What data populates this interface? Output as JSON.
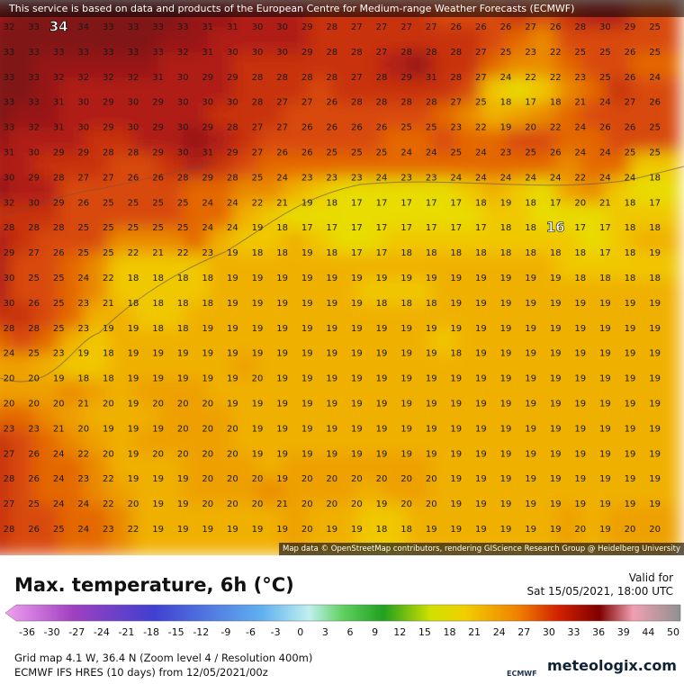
{
  "header": {
    "disclaimer": "This service is based on data and products of the European Centre for Medium-range Weather Forecasts (ECMWF)"
  },
  "map": {
    "attribution": "Map data © OpenStreetMap contributors, rendering GIScience Research Group @ Heidelberg University",
    "grid": [
      [
        32,
        33,
        34,
        34,
        33,
        33,
        33,
        33,
        31,
        31,
        30,
        30,
        29,
        28,
        27,
        27,
        27,
        27,
        26,
        26,
        26,
        27,
        26,
        28,
        30,
        29,
        25
      ],
      [
        33,
        33,
        33,
        33,
        33,
        33,
        33,
        32,
        31,
        30,
        30,
        30,
        29,
        28,
        28,
        27,
        28,
        28,
        28,
        27,
        25,
        23,
        22,
        25,
        25,
        26,
        25
      ],
      [
        33,
        33,
        32,
        32,
        32,
        32,
        31,
        30,
        29,
        29,
        28,
        28,
        28,
        28,
        27,
        28,
        29,
        31,
        28,
        27,
        24,
        22,
        22,
        23,
        25,
        26,
        24
      ],
      [
        33,
        33,
        31,
        30,
        29,
        30,
        29,
        30,
        30,
        30,
        28,
        27,
        27,
        26,
        28,
        28,
        28,
        28,
        27,
        25,
        18,
        17,
        18,
        21,
        24,
        27,
        26
      ],
      [
        33,
        32,
        31,
        30,
        29,
        30,
        29,
        30,
        29,
        28,
        27,
        27,
        26,
        26,
        26,
        26,
        25,
        25,
        23,
        22,
        19,
        20,
        22,
        24,
        26,
        26,
        25
      ],
      [
        31,
        30,
        29,
        29,
        28,
        28,
        29,
        30,
        31,
        29,
        27,
        26,
        26,
        25,
        25,
        25,
        24,
        24,
        25,
        24,
        23,
        25,
        26,
        24,
        24,
        25,
        25
      ],
      [
        30,
        29,
        28,
        27,
        27,
        26,
        26,
        28,
        29,
        28,
        25,
        24,
        23,
        23,
        23,
        24,
        23,
        23,
        24,
        24,
        24,
        24,
        24,
        22,
        24,
        24,
        18
      ],
      [
        32,
        30,
        29,
        26,
        25,
        25,
        25,
        25,
        24,
        24,
        22,
        21,
        19,
        18,
        17,
        17,
        17,
        17,
        17,
        18,
        19,
        18,
        17,
        20,
        21,
        18,
        17
      ],
      [
        28,
        28,
        28,
        25,
        25,
        25,
        25,
        25,
        24,
        24,
        19,
        18,
        17,
        17,
        17,
        17,
        17,
        17,
        17,
        17,
        18,
        18,
        16,
        17,
        17,
        18,
        18
      ],
      [
        29,
        27,
        26,
        25,
        25,
        22,
        21,
        22,
        23,
        19,
        18,
        18,
        19,
        18,
        17,
        17,
        18,
        18,
        18,
        18,
        18,
        18,
        18,
        18,
        17,
        18,
        19
      ],
      [
        30,
        25,
        25,
        24,
        22,
        18,
        18,
        18,
        18,
        19,
        19,
        19,
        19,
        19,
        19,
        19,
        19,
        19,
        19,
        19,
        19,
        19,
        19,
        18,
        18,
        18,
        18
      ],
      [
        30,
        26,
        25,
        23,
        21,
        18,
        18,
        18,
        18,
        19,
        19,
        19,
        19,
        19,
        19,
        18,
        18,
        18,
        19,
        19,
        19,
        19,
        19,
        19,
        19,
        19,
        19
      ],
      [
        28,
        28,
        25,
        23,
        19,
        19,
        18,
        18,
        19,
        19,
        19,
        19,
        19,
        19,
        19,
        19,
        19,
        19,
        19,
        19,
        19,
        19,
        19,
        19,
        19,
        19,
        19
      ],
      [
        24,
        25,
        23,
        19,
        18,
        19,
        19,
        19,
        19,
        19,
        19,
        19,
        19,
        19,
        19,
        19,
        19,
        19,
        18,
        19,
        19,
        19,
        19,
        19,
        19,
        19,
        19
      ],
      [
        20,
        20,
        19,
        18,
        18,
        19,
        19,
        19,
        19,
        19,
        20,
        19,
        19,
        19,
        19,
        19,
        19,
        19,
        19,
        19,
        19,
        19,
        19,
        19,
        19,
        19,
        19
      ],
      [
        20,
        20,
        20,
        21,
        20,
        19,
        20,
        20,
        20,
        19,
        19,
        19,
        19,
        19,
        19,
        19,
        19,
        19,
        19,
        19,
        19,
        19,
        19,
        19,
        19,
        19,
        19
      ],
      [
        23,
        23,
        21,
        20,
        19,
        19,
        19,
        20,
        20,
        20,
        19,
        19,
        19,
        19,
        19,
        19,
        19,
        19,
        19,
        19,
        19,
        19,
        19,
        19,
        19,
        19,
        19
      ],
      [
        27,
        26,
        24,
        22,
        20,
        19,
        20,
        20,
        20,
        20,
        19,
        19,
        19,
        19,
        19,
        19,
        19,
        19,
        19,
        19,
        19,
        19,
        19,
        19,
        19,
        19,
        19
      ],
      [
        28,
        26,
        24,
        23,
        22,
        19,
        19,
        19,
        20,
        20,
        20,
        19,
        20,
        20,
        20,
        20,
        20,
        20,
        19,
        19,
        19,
        19,
        19,
        19,
        19,
        19,
        19
      ],
      [
        27,
        25,
        24,
        24,
        22,
        20,
        19,
        19,
        20,
        20,
        20,
        21,
        20,
        20,
        20,
        19,
        20,
        20,
        19,
        19,
        19,
        19,
        19,
        19,
        19,
        19,
        19
      ],
      [
        28,
        26,
        25,
        24,
        23,
        22,
        19,
        19,
        19,
        19,
        19,
        19,
        20,
        19,
        19,
        18,
        18,
        19,
        19,
        19,
        19,
        19,
        19,
        20,
        19,
        20,
        20
      ]
    ]
  },
  "legend": {
    "title": "Max. temperature, 6h (°C)",
    "valid_label": "Valid for",
    "valid_time": "Sat 15/05/2021, 18:00 UTC",
    "ticks": [
      -36,
      -30,
      -27,
      -24,
      -21,
      -18,
      -15,
      -12,
      -9,
      -6,
      -3,
      0,
      3,
      6,
      9,
      12,
      15,
      18,
      21,
      24,
      27,
      30,
      33,
      36,
      39,
      44,
      50
    ]
  },
  "footer": {
    "grid_info": "Grid map 4.1 W, 36.4 N (Zoom level 4 / Resolution 400m)",
    "model_info": "ECMWF IFS HRES (10 days) from 12/05/2021/00z",
    "ecmwf": "ECMWF",
    "brand": "meteologix.com"
  }
}
